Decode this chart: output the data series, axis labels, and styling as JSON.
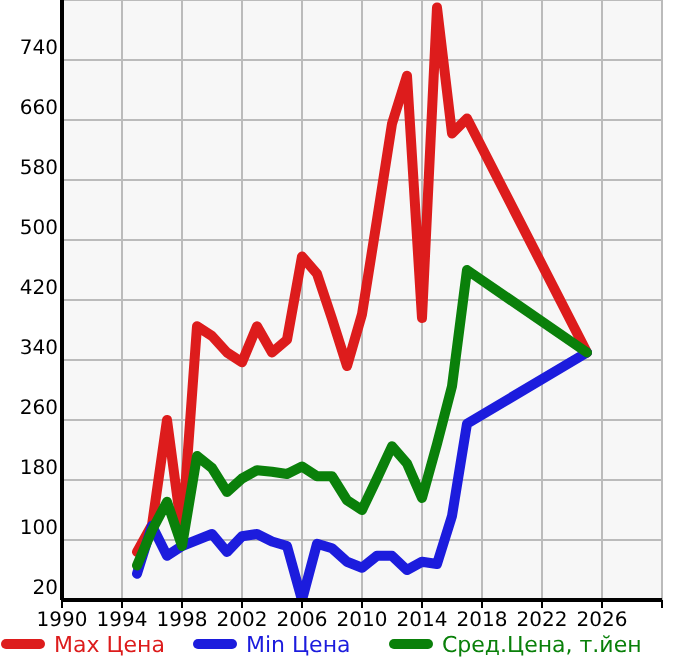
{
  "chart_data": {
    "type": "line",
    "x": [
      1995,
      1996,
      1997,
      1998,
      1999,
      2000,
      2001,
      2002,
      2003,
      2004,
      2005,
      2006,
      2007,
      2008,
      2009,
      2010,
      2011,
      2012,
      2013,
      2014,
      2015,
      2016,
      2017,
      2025
    ],
    "series": [
      {
        "name": "Max Цена",
        "color": "#dd1c1c",
        "values": [
          84,
          120,
          260,
          110,
          385,
          372,
          350,
          337,
          385,
          350,
          367,
          478,
          455,
          395,
          332,
          401,
          527,
          655,
          719,
          396,
          810,
          642,
          662,
          350
        ]
      },
      {
        "name": "Min Цена",
        "color": "#1c1cdd",
        "values": [
          55,
          119,
          79,
          92,
          100,
          108,
          84,
          105,
          108,
          98,
          92,
          20,
          95,
          89,
          71,
          63,
          79,
          79,
          60,
          71,
          68,
          132,
          255,
          350
        ]
      },
      {
        "name": "Сред.Цена, т.йен",
        "color": "#0a800a",
        "values": [
          66,
          113,
          151,
          92,
          212,
          196,
          164,
          182,
          193,
          191,
          188,
          198,
          185,
          185,
          153,
          140,
          182,
          225,
          202,
          156,
          228,
          305,
          460,
          350
        ]
      }
    ],
    "xlim": [
      1990,
      2030
    ],
    "xticks": [
      1990,
      1994,
      1998,
      2002,
      2006,
      2010,
      2014,
      2018,
      2022,
      2026,
      {
        "value": 2030,
        "label": null
      }
    ],
    "ylim": [
      20,
      820
    ],
    "yticks": [
      20,
      100,
      180,
      260,
      340,
      420,
      500,
      580,
      660,
      740,
      {
        "value": 820,
        "label": null
      }
    ],
    "grid": true,
    "legend": "bottom",
    "marker": "none",
    "line_style": "solid"
  }
}
